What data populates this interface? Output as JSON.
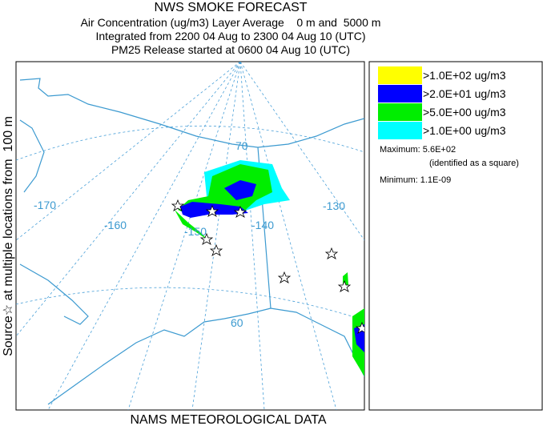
{
  "header": {
    "title": "NWS SMOKE FORECAST",
    "lines": [
      "Air Concentration (ug/m3) Layer Average    0 m and  5000 m",
      "Integrated from 2200 04 Aug to 2300 04 Aug 10 (UTC)",
      "PM25 Release started at 0600 04 Aug 10 (UTC)"
    ]
  },
  "side_label": "Source☆ at multiple locations from  100 m",
  "footer": "NAMS METEOROLOGICAL DATA",
  "map": {
    "labels": [
      "-170",
      "-160",
      "-150",
      "-140",
      "-130",
      "70",
      "60"
    ]
  },
  "legend": {
    "items": [
      {
        "label": ">1.0E+02 ug/m3",
        "color": "#ffff00"
      },
      {
        "label": ">2.0E+01 ug/m3",
        "color": "#0000ff"
      },
      {
        "label": ">5.0E+00 ug/m3",
        "color": "#00ee00"
      },
      {
        "label": ">1.0E+00 ug/m3",
        "color": "#00ffff"
      }
    ],
    "maximum": "Maximum: 5.6E+02",
    "maximum_note": "(identified as a square)",
    "minimum": "Minimum: 1.1E-09"
  }
}
